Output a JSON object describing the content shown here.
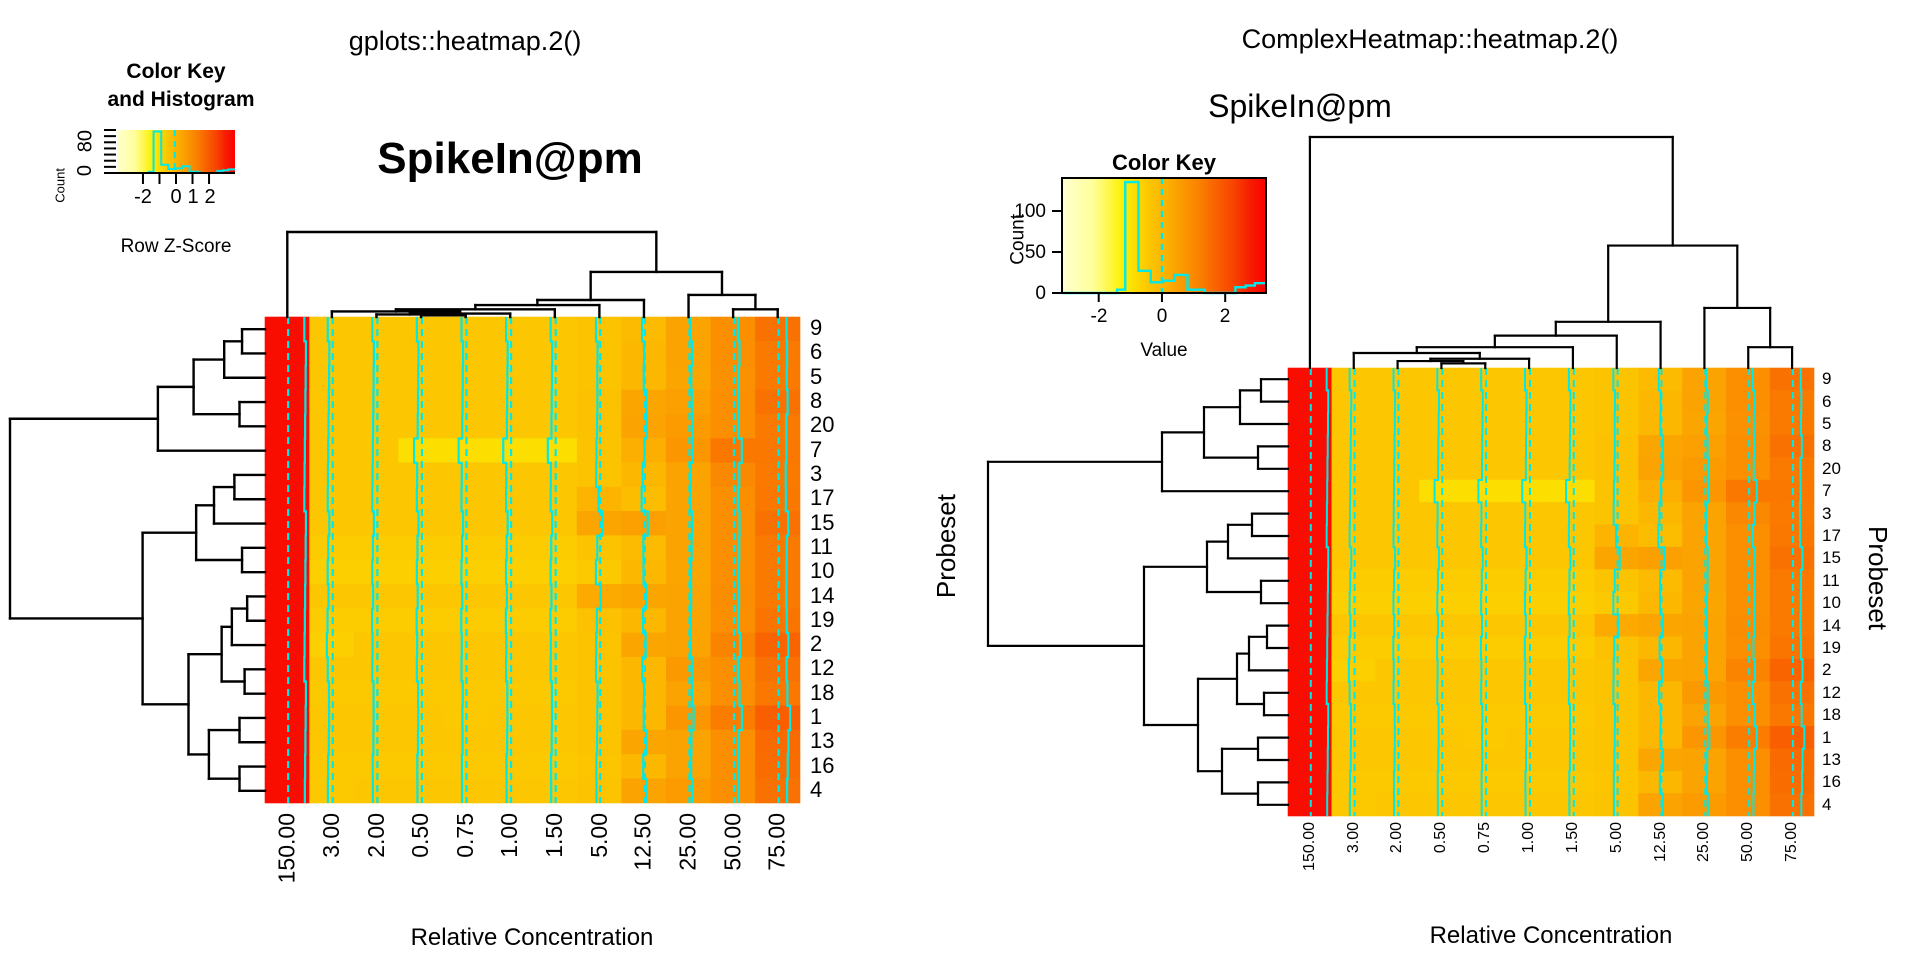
{
  "left_panel": {
    "title": "gplots::heatmap.2()",
    "subtitle": "SpikeIn@pm",
    "color_key": {
      "title_line1": "Color Key",
      "title_line2": "and Histogram",
      "count_label": "Count",
      "y_ticks": [
        "0",
        "80"
      ],
      "x_ticks": [
        "-2",
        "0",
        "1",
        "2"
      ],
      "x_label": "Row Z-Score"
    },
    "xlabel": "Relative Concentration"
  },
  "right_panel": {
    "title": "ComplexHeatmap::heatmap.2()",
    "subtitle": "SpikeIn@pm",
    "color_key": {
      "title": "Color Key",
      "count_label": "Count",
      "y_ticks": [
        "0",
        "50",
        "100"
      ],
      "x_ticks": [
        "-2",
        "0",
        "2"
      ],
      "x_label": "Value"
    },
    "xlabel": "Relative Concentration",
    "row_title_left": "Probeset",
    "row_title_right": "Probeset"
  },
  "chart_data": {
    "type": "heatmap",
    "title_left": "gplots::heatmap.2()",
    "title_right": "ComplexHeatmap::heatmap.2()",
    "heatmap_title": "SpikeIn@pm",
    "xlabel": "Relative Concentration",
    "row_axis_label": "Probeset",
    "value_scale_label_left": "Row Z-Score",
    "value_scale_label_right": "Value",
    "zlim": [
      -3,
      3
    ],
    "columns": [
      "150.00",
      "3.00",
      "2.00",
      "0.50",
      "0.75",
      "1.00",
      "1.50",
      "5.00",
      "12.50",
      "25.00",
      "50.00",
      "75.00"
    ],
    "rows": [
      "9",
      "6",
      "5",
      "8",
      "20",
      "7",
      "3",
      "17",
      "15",
      "11",
      "10",
      "14",
      "19",
      "2",
      "12",
      "18",
      "1",
      "13",
      "16",
      "4"
    ],
    "values": [
      [
        2.8,
        -0.45,
        -0.45,
        -0.45,
        -0.45,
        -0.45,
        -0.45,
        -0.35,
        -0.15,
        0.35,
        0.75,
        1.3
      ],
      [
        2.8,
        -0.45,
        -0.45,
        -0.45,
        -0.45,
        -0.45,
        -0.45,
        -0.35,
        -0.1,
        0.35,
        0.75,
        1.15
      ],
      [
        2.8,
        -0.45,
        -0.45,
        -0.45,
        -0.45,
        -0.45,
        -0.45,
        -0.35,
        -0.1,
        0.3,
        0.7,
        1.15
      ],
      [
        2.8,
        -0.45,
        -0.45,
        -0.45,
        -0.45,
        -0.45,
        -0.45,
        -0.3,
        0.3,
        0.4,
        0.75,
        1.3
      ],
      [
        2.8,
        -0.45,
        -0.45,
        -0.45,
        -0.45,
        -0.45,
        -0.45,
        -0.3,
        0.35,
        0.5,
        0.75,
        1.15
      ],
      [
        2.8,
        -0.45,
        -0.45,
        -0.9,
        -0.9,
        -0.9,
        -0.9,
        -0.35,
        0.1,
        0.6,
        1.2,
        1.2
      ],
      [
        2.8,
        -0.45,
        -0.45,
        -0.45,
        -0.45,
        -0.45,
        -0.45,
        -0.35,
        -0.1,
        0.35,
        0.9,
        1.15
      ],
      [
        2.8,
        -0.45,
        -0.45,
        -0.45,
        -0.45,
        -0.45,
        -0.45,
        0.0,
        -0.2,
        0.35,
        0.75,
        1.2
      ],
      [
        2.8,
        -0.45,
        -0.45,
        -0.45,
        -0.45,
        -0.45,
        -0.45,
        0.3,
        0.4,
        0.35,
        0.75,
        1.3
      ],
      [
        2.8,
        -0.55,
        -0.55,
        -0.55,
        -0.55,
        -0.55,
        -0.55,
        -0.35,
        -0.15,
        0.35,
        0.75,
        1.15
      ],
      [
        2.8,
        -0.6,
        -0.6,
        -0.6,
        -0.6,
        -0.6,
        -0.6,
        -0.5,
        -0.1,
        0.3,
        0.75,
        1.15
      ],
      [
        2.8,
        -0.45,
        -0.45,
        -0.45,
        -0.45,
        -0.45,
        -0.45,
        0.2,
        0.3,
        0.35,
        0.8,
        1.15
      ],
      [
        2.8,
        -0.55,
        -0.55,
        -0.55,
        -0.55,
        -0.55,
        -0.55,
        -0.3,
        -0.1,
        0.35,
        0.75,
        1.25
      ],
      [
        2.8,
        -0.6,
        -0.45,
        -0.45,
        -0.45,
        -0.45,
        -0.45,
        -0.35,
        0.3,
        0.35,
        1.0,
        1.5
      ],
      [
        2.8,
        -0.45,
        -0.45,
        -0.45,
        -0.45,
        -0.45,
        -0.45,
        -0.35,
        -0.1,
        0.55,
        0.75,
        1.3
      ],
      [
        2.8,
        -0.5,
        -0.5,
        -0.5,
        -0.5,
        -0.5,
        -0.5,
        -0.35,
        -0.1,
        0.35,
        0.75,
        1.2
      ],
      [
        2.8,
        -0.45,
        -0.45,
        -0.45,
        -0.5,
        -0.45,
        -0.45,
        -0.35,
        -0.1,
        0.6,
        1.1,
        1.6
      ],
      [
        2.8,
        -0.45,
        -0.45,
        -0.45,
        -0.45,
        -0.45,
        -0.45,
        -0.35,
        0.3,
        0.35,
        0.75,
        1.4
      ],
      [
        2.8,
        -0.5,
        -0.5,
        -0.5,
        -0.5,
        -0.5,
        -0.5,
        -0.4,
        -0.1,
        0.35,
        0.75,
        1.35
      ],
      [
        2.8,
        -0.5,
        -0.45,
        -0.45,
        -0.45,
        -0.45,
        -0.45,
        -0.35,
        0.35,
        0.5,
        0.75,
        1.3
      ]
    ],
    "colormap": [
      [
        0.0,
        "#FFFFD0"
      ],
      [
        0.15,
        "#FFFF9C"
      ],
      [
        0.3,
        "#FCF000"
      ],
      [
        0.42,
        "#FCC800"
      ],
      [
        0.5,
        "#FCB400"
      ],
      [
        0.58,
        "#FB9C00"
      ],
      [
        0.67,
        "#FA8200"
      ],
      [
        0.75,
        "#F96400"
      ],
      [
        0.84,
        "#F84400"
      ],
      [
        0.92,
        "#F71E00"
      ],
      [
        1.0,
        "#FB0000"
      ]
    ],
    "trace_color": "#00E8E8",
    "dendrogram_color": "#000000",
    "key_histogram": {
      "count_max": 140,
      "steps": [
        [
          0.0,
          0
        ],
        [
          0.27,
          0
        ],
        [
          0.27,
          4
        ],
        [
          0.31,
          4
        ],
        [
          0.31,
          135
        ],
        [
          0.375,
          135
        ],
        [
          0.375,
          27
        ],
        [
          0.435,
          27
        ],
        [
          0.435,
          13
        ],
        [
          0.495,
          13
        ],
        [
          0.495,
          15
        ],
        [
          0.55,
          15
        ],
        [
          0.55,
          22
        ],
        [
          0.615,
          22
        ],
        [
          0.615,
          4
        ],
        [
          0.7,
          4
        ],
        [
          0.7,
          0
        ],
        [
          0.85,
          0
        ],
        [
          0.85,
          7
        ],
        [
          0.9,
          7
        ],
        [
          0.9,
          9
        ],
        [
          0.945,
          9
        ],
        [
          0.945,
          12
        ],
        [
          1.0,
          12
        ]
      ],
      "zero_line_frac": 0.49
    },
    "row_dendrogram": {
      "h": 1.0,
      "c": [
        {
          "h": 0.42,
          "c": [
            {
              "h": 0.28,
              "c": [
                {
                  "h": 0.16,
                  "c": [
                    {
                      "h": 0.09,
                      "c": [
                        "9",
                        "6"
                      ]
                    },
                    "5"
                  ]
                },
                {
                  "h": 0.1,
                  "c": [
                    "8",
                    "20"
                  ]
                }
              ]
            },
            "7"
          ]
        },
        {
          "h": 0.48,
          "c": [
            {
              "h": 0.27,
              "c": [
                {
                  "h": 0.2,
                  "c": [
                    {
                      "h": 0.12,
                      "c": [
                        "3",
                        "17"
                      ]
                    },
                    "15"
                  ]
                },
                {
                  "h": 0.09,
                  "c": [
                    "11",
                    "10"
                  ]
                }
              ]
            },
            {
              "h": 0.3,
              "c": [
                {
                  "h": 0.17,
                  "c": [
                    {
                      "h": 0.13,
                      "c": [
                        {
                          "h": 0.07,
                          "c": [
                            "14",
                            "19"
                          ]
                        },
                        "2"
                      ]
                    },
                    {
                      "h": 0.08,
                      "c": [
                        "12",
                        "18"
                      ]
                    }
                  ]
                },
                {
                  "h": 0.22,
                  "c": [
                    {
                      "h": 0.1,
                      "c": [
                        "1",
                        "13"
                      ]
                    },
                    {
                      "h": 0.1,
                      "c": [
                        "16",
                        "4"
                      ]
                    }
                  ]
                }
              ]
            }
          ]
        }
      ]
    },
    "col_dendrogram": {
      "h": 1.0,
      "c": [
        "150.00",
        {
          "h": 0.53,
          "c": [
            {
              "h": 0.2,
              "c": [
                {
                  "h": 0.14,
                  "c": [
                    {
                      "h": 0.09,
                      "c": [
                        {
                          "h": 0.065,
                          "c": [
                            "3.00",
                            {
                              "h": 0.04,
                              "c": [
                                {
                                  "h": 0.03,
                                  "c": [
                                    "2.00",
                                    {
                                      "h": 0.02,
                                      "c": [
                                        "0.50",
                                        "0.75"
                                      ]
                                    }
                                  ]
                                },
                                "1.00"
                              ]
                            }
                          ]
                        },
                        "1.50"
                      ]
                    },
                    "5.00"
                  ]
                },
                "12.50"
              ]
            },
            {
              "h": 0.26,
              "c": [
                "25.00",
                {
                  "h": 0.09,
                  "c": [
                    "50.00",
                    "75.00"
                  ]
                }
              ]
            }
          ]
        }
      ]
    }
  }
}
